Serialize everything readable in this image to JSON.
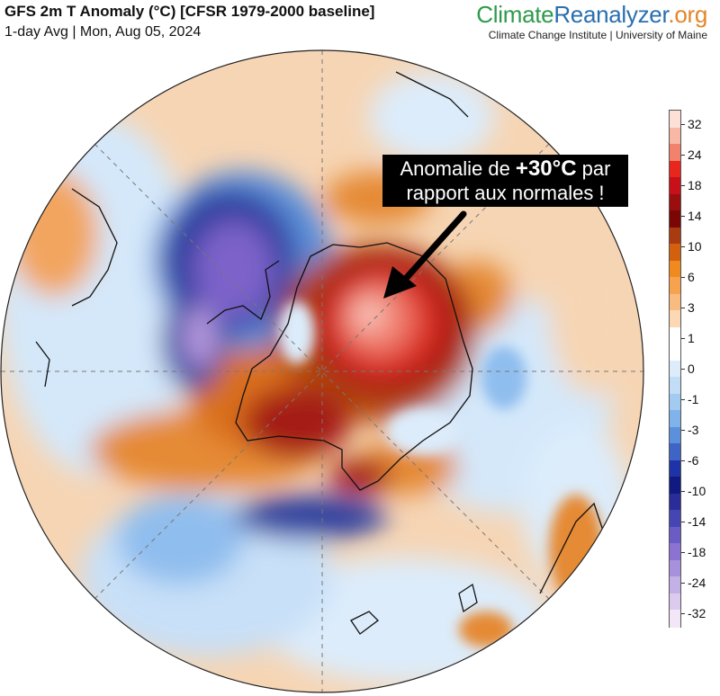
{
  "header": {
    "title": "GFS 2m T Anomaly (°C) [CFSR 1979-2000 baseline]",
    "subtitle": "1-day Avg | Mon, Aug 05, 2024"
  },
  "branding": {
    "part1": "Climate",
    "part2": "Reanalyzer",
    "part3": ".org",
    "subline": "Climate Change Institute | University of Maine",
    "colors": {
      "climate": "#2e9a4a",
      "reanalyzer": "#2a6fae",
      "org": "#e3862b"
    }
  },
  "annotation": {
    "line1_prefix": "Anomalie de ",
    "line1_value": "+30°C",
    "line1_suffix": " par",
    "line2": "rapport aux normales !"
  },
  "colorbar": {
    "unit": "°C",
    "tick_labels": [
      "32",
      "24",
      "18",
      "14",
      "10",
      "6",
      "3",
      "1",
      "0",
      "-1",
      "-3",
      "-6",
      "-10",
      "-14",
      "-18",
      "-24",
      "-32"
    ],
    "colors_top_to_bottom": [
      "#fde0d8",
      "#f7b9a6",
      "#f1826c",
      "#e8261d",
      "#c8101a",
      "#9b0e0e",
      "#7a0606",
      "#a83b10",
      "#d2600f",
      "#f08a1e",
      "#f6a24e",
      "#f8bc80",
      "#fcd9b4",
      "#ffffff",
      "#ffffff",
      "#dcecfb",
      "#c2ddf6",
      "#a3cbf1",
      "#7fb3ea",
      "#5b91dc",
      "#3e64c5",
      "#1f33a8",
      "#101a80",
      "#2a2c9a",
      "#4546b3",
      "#6a5bc5",
      "#8d73d1",
      "#a891dc",
      "#c3b0e6",
      "#dccbef",
      "#f2e6f7"
    ]
  },
  "map": {
    "projection": "south polar stereographic",
    "palette": {
      "orange_light": "#fbd9b8",
      "orange": "#f2a55e",
      "orange_dark": "#d9701e",
      "brown": "#b5480f",
      "red_dark": "#a51b14",
      "red": "#dc2d22",
      "red_light": "#f07e6e",
      "pink": "#f9c7bd",
      "blue_light": "#d4e8fa",
      "blue": "#8fbdee",
      "blue_mid": "#5c8ed9",
      "blue_dark": "#2e3f9f",
      "purple": "#7b62c9",
      "purple_light": "#b99be0",
      "white": "#f6f8fb"
    }
  }
}
